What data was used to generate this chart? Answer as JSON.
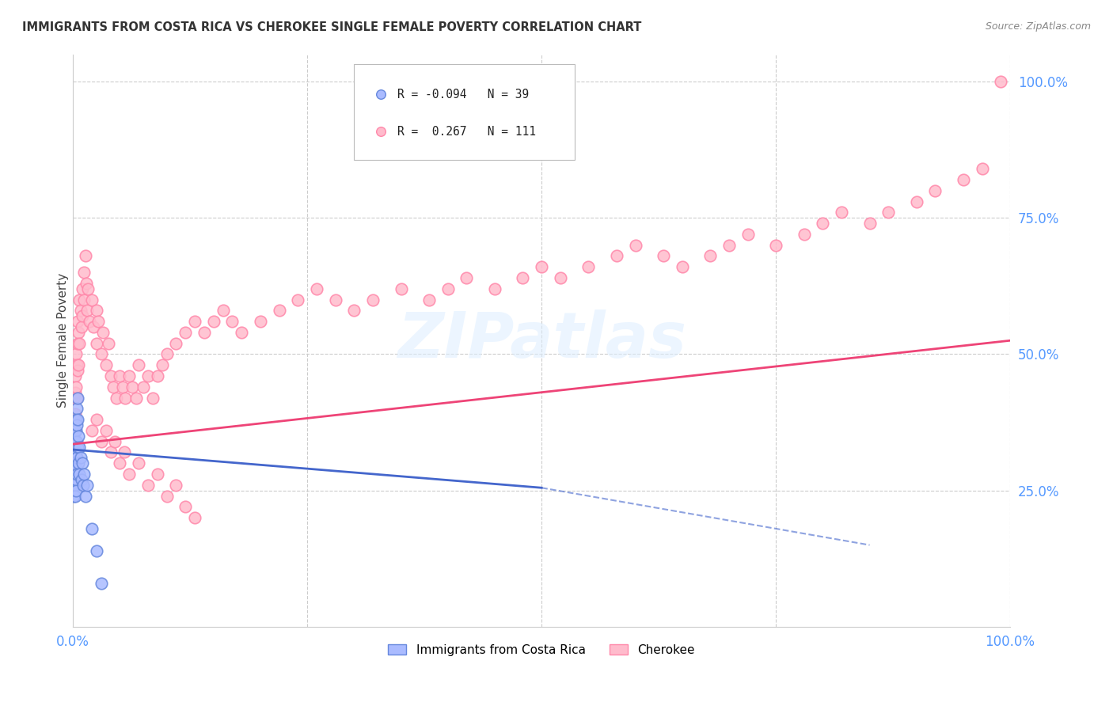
{
  "title": "IMMIGRANTS FROM COSTA RICA VS CHEROKEE SINGLE FEMALE POVERTY CORRELATION CHART",
  "source": "Source: ZipAtlas.com",
  "ylabel": "Single Female Poverty",
  "watermark": "ZIPatlas",
  "blue_color": "#aabbff",
  "blue_edge_color": "#6688dd",
  "pink_color": "#ffbbcc",
  "pink_edge_color": "#ff88aa",
  "blue_trend_color": "#4466cc",
  "pink_trend_color": "#ee4477",
  "axis_label_color": "#5599ff",
  "ytick_labels": [
    "25.0%",
    "50.0%",
    "75.0%",
    "100.0%"
  ],
  "ytick_values": [
    0.25,
    0.5,
    0.75,
    1.0
  ],
  "blue_scatter_x": [
    0.001,
    0.001,
    0.001,
    0.001,
    0.001,
    0.002,
    0.002,
    0.002,
    0.002,
    0.002,
    0.002,
    0.003,
    0.003,
    0.003,
    0.003,
    0.003,
    0.003,
    0.004,
    0.004,
    0.004,
    0.004,
    0.004,
    0.005,
    0.005,
    0.005,
    0.006,
    0.006,
    0.007,
    0.007,
    0.008,
    0.009,
    0.01,
    0.011,
    0.012,
    0.013,
    0.015,
    0.02,
    0.025,
    0.03
  ],
  "blue_scatter_y": [
    0.32,
    0.3,
    0.28,
    0.26,
    0.24,
    0.36,
    0.34,
    0.3,
    0.28,
    0.26,
    0.24,
    0.38,
    0.36,
    0.32,
    0.29,
    0.27,
    0.25,
    0.4,
    0.37,
    0.34,
    0.31,
    0.28,
    0.42,
    0.38,
    0.33,
    0.35,
    0.3,
    0.33,
    0.28,
    0.31,
    0.27,
    0.3,
    0.26,
    0.28,
    0.24,
    0.26,
    0.18,
    0.14,
    0.08
  ],
  "pink_scatter_x": [
    0.001,
    0.001,
    0.001,
    0.002,
    0.002,
    0.002,
    0.003,
    0.003,
    0.004,
    0.004,
    0.005,
    0.005,
    0.005,
    0.006,
    0.006,
    0.007,
    0.007,
    0.008,
    0.009,
    0.01,
    0.01,
    0.012,
    0.012,
    0.013,
    0.014,
    0.015,
    0.016,
    0.018,
    0.02,
    0.022,
    0.025,
    0.025,
    0.027,
    0.03,
    0.032,
    0.035,
    0.038,
    0.04,
    0.043,
    0.046,
    0.05,
    0.053,
    0.056,
    0.06,
    0.063,
    0.067,
    0.07,
    0.075,
    0.08,
    0.085,
    0.09,
    0.095,
    0.1,
    0.11,
    0.12,
    0.13,
    0.14,
    0.15,
    0.16,
    0.17,
    0.18,
    0.2,
    0.22,
    0.24,
    0.26,
    0.28,
    0.3,
    0.32,
    0.35,
    0.38,
    0.4,
    0.42,
    0.45,
    0.48,
    0.5,
    0.52,
    0.55,
    0.58,
    0.6,
    0.63,
    0.65,
    0.68,
    0.7,
    0.72,
    0.75,
    0.78,
    0.8,
    0.82,
    0.85,
    0.87,
    0.9,
    0.92,
    0.95,
    0.97,
    0.99,
    0.02,
    0.025,
    0.03,
    0.035,
    0.04,
    0.045,
    0.05,
    0.055,
    0.06,
    0.07,
    0.08,
    0.09,
    0.1,
    0.11,
    0.12,
    0.13
  ],
  "pink_scatter_y": [
    0.42,
    0.38,
    0.35,
    0.46,
    0.43,
    0.39,
    0.5,
    0.44,
    0.48,
    0.42,
    0.56,
    0.52,
    0.47,
    0.54,
    0.48,
    0.6,
    0.52,
    0.58,
    0.55,
    0.62,
    0.57,
    0.65,
    0.6,
    0.68,
    0.63,
    0.58,
    0.62,
    0.56,
    0.6,
    0.55,
    0.58,
    0.52,
    0.56,
    0.5,
    0.54,
    0.48,
    0.52,
    0.46,
    0.44,
    0.42,
    0.46,
    0.44,
    0.42,
    0.46,
    0.44,
    0.42,
    0.48,
    0.44,
    0.46,
    0.42,
    0.46,
    0.48,
    0.5,
    0.52,
    0.54,
    0.56,
    0.54,
    0.56,
    0.58,
    0.56,
    0.54,
    0.56,
    0.58,
    0.6,
    0.62,
    0.6,
    0.58,
    0.6,
    0.62,
    0.6,
    0.62,
    0.64,
    0.62,
    0.64,
    0.66,
    0.64,
    0.66,
    0.68,
    0.7,
    0.68,
    0.66,
    0.68,
    0.7,
    0.72,
    0.7,
    0.72,
    0.74,
    0.76,
    0.74,
    0.76,
    0.78,
    0.8,
    0.82,
    0.84,
    1.0,
    0.36,
    0.38,
    0.34,
    0.36,
    0.32,
    0.34,
    0.3,
    0.32,
    0.28,
    0.3,
    0.26,
    0.28,
    0.24,
    0.26,
    0.22,
    0.2
  ],
  "blue_trend_x": [
    0.0,
    0.5
  ],
  "blue_trend_y": [
    0.325,
    0.255
  ],
  "pink_trend_x": [
    0.0,
    1.0
  ],
  "pink_trend_y": [
    0.335,
    0.525
  ],
  "xlim": [
    0.0,
    1.0
  ],
  "ylim": [
    0.0,
    1.05
  ],
  "background_color": "#ffffff",
  "grid_color": "#cccccc"
}
